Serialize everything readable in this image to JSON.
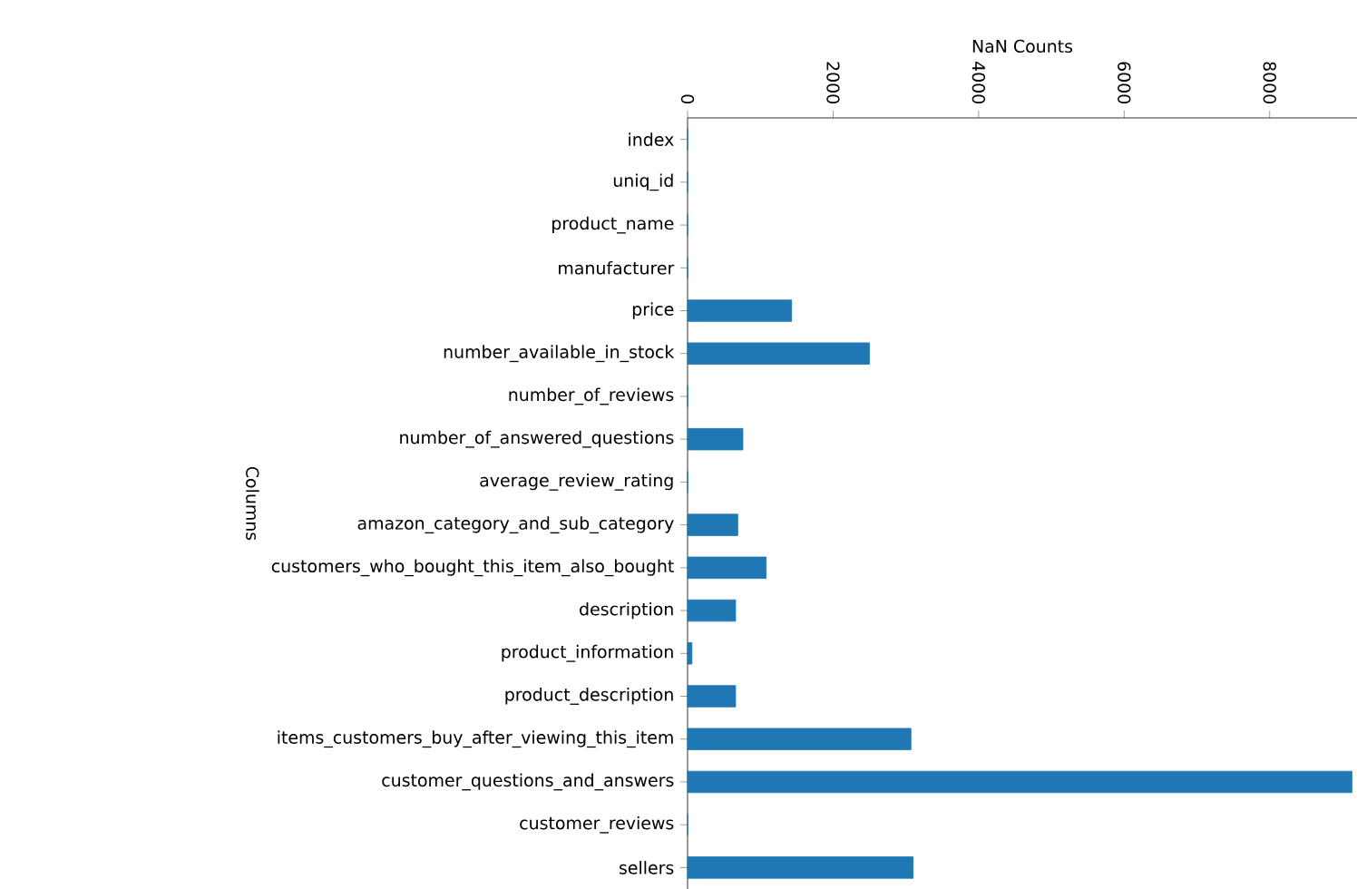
{
  "chart_data": {
    "type": "bar",
    "orientation": "horizontal",
    "xlabel": "NaN Counts",
    "ylabel": "Columns",
    "categories": [
      "index",
      "uniq_id",
      "product_name",
      "manufacturer",
      "price",
      "number_available_in_stock",
      "number_of_reviews",
      "number_of_answered_questions",
      "average_review_rating",
      "amazon_category_and_sub_category",
      "customers_who_bought_this_item_also_bought",
      "description",
      "product_information",
      "product_description",
      "items_customers_buy_after_viewing_this_item",
      "customer_questions_and_answers",
      "customer_reviews",
      "sellers"
    ],
    "values": [
      0,
      0,
      0,
      0,
      1430,
      2500,
      0,
      760,
      0,
      690,
      1080,
      660,
      60,
      660,
      3070,
      9130,
      0,
      3100
    ],
    "color": "#1f77b4",
    "xlim": [
      0,
      9200
    ],
    "xticks": [
      0,
      2000,
      4000,
      6000,
      8000
    ],
    "grid": false
  }
}
